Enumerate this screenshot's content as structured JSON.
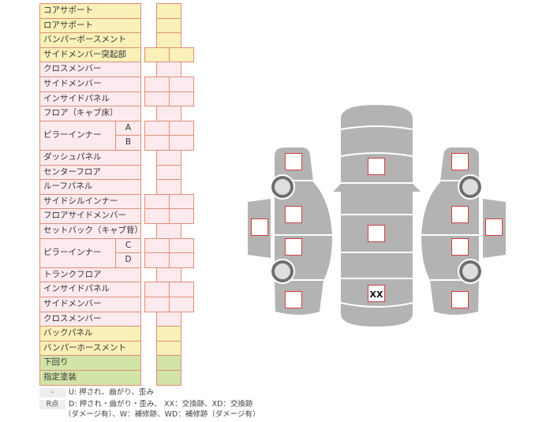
{
  "rows": [
    {
      "label": "コアサポート",
      "group": "yellow",
      "cells": 1
    },
    {
      "label": "ロアサポート",
      "group": "yellow",
      "cells": 1
    },
    {
      "label": "バンパーボースメント",
      "group": "yellow",
      "cells": 1
    },
    {
      "label": "サイドメンバー突起部",
      "group": "yellow",
      "cells": 2
    },
    {
      "label": "クロスメンバー",
      "group": "pink",
      "cells": 1
    },
    {
      "label": "サイドメンバー",
      "group": "pink",
      "cells": 2
    },
    {
      "label": "インサイドパネル",
      "group": "pink",
      "cells": 2
    },
    {
      "label": "フロア（キャブ床）",
      "group": "pink",
      "cells": 1
    },
    {
      "label": "ピラーインナー",
      "sub": "A",
      "group": "pink",
      "cells": 2
    },
    {
      "label": "",
      "sub": "B",
      "group": "pink",
      "cells": 2
    },
    {
      "label": "ダッシュパネル",
      "group": "pink",
      "cells": 1
    },
    {
      "label": "センターフロア",
      "group": "pink",
      "cells": 1
    },
    {
      "label": "ルーフパネル",
      "group": "pink",
      "cells": 1
    },
    {
      "label": "サイドシルインナー",
      "group": "pink",
      "cells": 2
    },
    {
      "label": "フロアサイドメンバー",
      "group": "pink",
      "cells": 2
    },
    {
      "label": "セットバック（キャブ背）",
      "group": "pink",
      "cells": 1
    },
    {
      "label": "ピラーインナー",
      "sub": "C",
      "group": "pink",
      "cells": 2
    },
    {
      "label": "",
      "sub": "D",
      "group": "pink",
      "cells": 2
    },
    {
      "label": "トランクフロア",
      "group": "pink",
      "cells": 1
    },
    {
      "label": "インサイドパネル",
      "group": "pink",
      "cells": 2
    },
    {
      "label": "サイドメンバー",
      "group": "pink",
      "cells": 2
    },
    {
      "label": "クロスメンバー",
      "group": "pink",
      "cells": 1
    },
    {
      "label": "バックパネル",
      "group": "yellow",
      "cells": 1
    },
    {
      "label": "バンパーホースメント",
      "group": "yellow",
      "cells": 1
    },
    {
      "label": "下回り",
      "group": "green",
      "cells": 1
    },
    {
      "label": "指定塗装",
      "group": "green",
      "cells": 1
    }
  ],
  "legend": {
    "key1": "-",
    "text1": "U: 押され、曲がり、歪み",
    "key2": "R点",
    "text2": "D: 押され・曲がり・歪み、 XX：交換跡、XD：交換跡",
    "text3": "（ダメージ有）、W：補修跡、WD：補修跡（ダメージ有）"
  },
  "diagram": {
    "center_marks": [
      "",
      "",
      "XX"
    ],
    "colors": {
      "body": "#b3b3b3",
      "box_border": "#d04040",
      "wheel_ring": "#6e6e6e",
      "wheel_hub": "#dedede"
    }
  }
}
